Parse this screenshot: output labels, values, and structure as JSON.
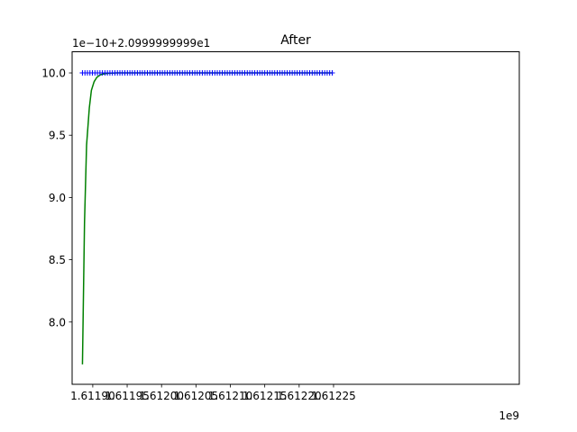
{
  "chart_data": {
    "type": "line",
    "title": "After",
    "xlabel": "",
    "ylabel": "",
    "x_offset_text": "1e9",
    "y_offset_text": "1e−10+2.0999999999e1",
    "x_ticks": [
      1.6119,
      1.61195,
      1.612,
      1.61205,
      1.6121,
      1.61215,
      1.6122,
      1.61225
    ],
    "x_tick_labels": [
      "1.61190",
      "1.61195",
      "1.61200",
      "1.61205",
      "1.61210",
      "1.61215",
      "1.61220",
      "1.61225"
    ],
    "y_ticks": [
      8.0,
      8.5,
      9.0,
      9.5,
      10.0
    ],
    "y_tick_labels": [
      "8.0",
      "8.5",
      "9.0",
      "9.5",
      "10.0"
    ],
    "xlim": [
      1.61187,
      1.61252
    ],
    "ylim": [
      7.5,
      10.17
    ],
    "grid": false,
    "series": [
      {
        "color": "#0000ff",
        "marker": "+",
        "line": "none",
        "x_start": 1.611885,
        "x_end": 1.612248,
        "count": 101,
        "y_value": 10.0
      },
      {
        "color": "#008000",
        "marker": "none",
        "line": "solid",
        "x": [
          1.611885,
          1.611888,
          1.611891,
          1.611895,
          1.611898,
          1.611902,
          1.611906,
          1.611911,
          1.611917,
          1.611925,
          1.611935,
          1.61195,
          1.61198,
          1.61203,
          1.6121,
          1.6122,
          1.612248
        ],
        "y": [
          7.66,
          8.8,
          9.42,
          9.72,
          9.86,
          9.93,
          9.965,
          9.985,
          9.994,
          9.998,
          10.0,
          10.0,
          10.0,
          10.0,
          10.0,
          10.0,
          10.0
        ]
      }
    ]
  }
}
